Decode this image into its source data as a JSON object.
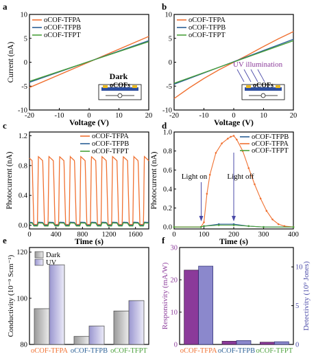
{
  "colors": {
    "TFPA": "#f07030",
    "TFPB": "#2a5f95",
    "TFPT": "#4aa03a",
    "frame": "#000000",
    "responsivity": "#8b3a9a",
    "detectivity": "#4a4aa8",
    "device_layer": "#2d4fa0",
    "electrode": "#e8b820"
  },
  "chart_data": [
    {
      "panel": "a",
      "type": "line",
      "xlabel": "Voltage (V)",
      "ylabel": "Current (nA)",
      "xlim": [
        -20,
        20
      ],
      "ylim": [
        -10,
        10
      ],
      "xticks": [
        "-20",
        "-10",
        "0",
        "10",
        "20"
      ],
      "yticks": [
        "-10",
        "-5",
        "0",
        "5",
        "10"
      ],
      "legend": "top-left",
      "annotation": "Dark",
      "device_label": "oCOFs",
      "series": [
        {
          "name": "oCOF-TFPA",
          "color_key": "TFPA",
          "x": [
            -20,
            20
          ],
          "y": [
            -5.3,
            5.4
          ]
        },
        {
          "name": "oCOF-TFPB",
          "color_key": "TFPB",
          "x": [
            -20,
            20
          ],
          "y": [
            -4.2,
            4.5
          ]
        },
        {
          "name": "oCOF-TFPT",
          "color_key": "TFPT",
          "x": [
            -20,
            20
          ],
          "y": [
            -4.0,
            4.3
          ]
        }
      ]
    },
    {
      "panel": "b",
      "type": "line",
      "xlabel": "Voltage (V)",
      "ylabel": "",
      "xlim": [
        -20,
        20
      ],
      "ylim": [
        -10,
        10
      ],
      "xticks": [
        "-20",
        "-10",
        "0",
        "10",
        "20"
      ],
      "yticks": [
        "-10",
        "-5",
        "0",
        "5",
        "10"
      ],
      "legend": "top-left",
      "annotation": "UV illumination",
      "device_label": "oCOFs",
      "series": [
        {
          "name": "oCOF-TFPA",
          "color_key": "TFPA",
          "x": [
            -20,
            -15,
            -10,
            -5,
            0,
            5,
            10,
            15,
            20
          ],
          "y": [
            -7.6,
            -5.4,
            -3.4,
            -1.6,
            0,
            1.6,
            3.3,
            4.9,
            6.4
          ]
        },
        {
          "name": "oCOF-TFPB",
          "color_key": "TFPB",
          "x": [
            -20,
            20
          ],
          "y": [
            -4.6,
            4.8
          ]
        },
        {
          "name": "oCOF-TFPT",
          "color_key": "TFPT",
          "x": [
            -20,
            20
          ],
          "y": [
            -4.4,
            4.5
          ]
        }
      ]
    },
    {
      "panel": "c",
      "type": "line",
      "xlabel": "Time (s)",
      "ylabel": "Photocurrent (nA)",
      "xlim": [
        0,
        1800
      ],
      "ylim": [
        -0.05,
        1.25
      ],
      "xticks": [
        "0",
        "400",
        "800",
        "1200",
        "1600"
      ],
      "yticks": [
        "0.0",
        "0.4",
        "0.8",
        "1.2"
      ],
      "legend": "top-right",
      "cycles": 11,
      "period_s": 160,
      "series": [
        {
          "name": "oCOF-TFPA",
          "color_key": "TFPA",
          "peak": 0.92,
          "base": 0.01
        },
        {
          "name": "oCOF-TFPB",
          "color_key": "TFPB",
          "peak": 0.04,
          "base": 0.0
        },
        {
          "name": "oCOF-TFPT",
          "color_key": "TFPT",
          "peak": 0.03,
          "base": -0.01
        }
      ]
    },
    {
      "panel": "d",
      "type": "line",
      "xlabel": "Time (s)",
      "ylabel": "Photocurrent (nA)",
      "xlim": [
        0,
        400
      ],
      "ylim": [
        -0.02,
        1.0
      ],
      "xticks": [
        "0",
        "100",
        "200",
        "300",
        "400"
      ],
      "yticks": [
        "0.0",
        "0.2",
        "0.4",
        "0.6",
        "0.8",
        "1.0"
      ],
      "legend": "top-right",
      "annotations": [
        "Light on",
        "Light off"
      ],
      "light_on_s": 100,
      "light_off_s": 200,
      "series": [
        {
          "name": "oCOF-TFPB",
          "color_key": "TFPB",
          "x": [
            0,
            90,
            100,
            150,
            200,
            250,
            300,
            400
          ],
          "y": [
            0.0,
            0.0,
            0.01,
            0.03,
            0.03,
            0.01,
            0.0,
            0.0
          ]
        },
        {
          "name": "oCOF-TFPA",
          "color_key": "TFPA",
          "x": [
            0,
            90,
            100,
            110,
            120,
            140,
            160,
            180,
            190,
            200,
            210,
            230,
            250,
            270,
            290,
            310,
            330,
            350,
            370,
            400
          ],
          "y": [
            0.0,
            0.0,
            0.05,
            0.35,
            0.55,
            0.78,
            0.88,
            0.93,
            0.95,
            0.96,
            0.92,
            0.8,
            0.62,
            0.45,
            0.3,
            0.17,
            0.08,
            0.03,
            0.01,
            0.0
          ]
        },
        {
          "name": "oCOF-TFPT",
          "color_key": "TFPT",
          "x": [
            0,
            90,
            100,
            150,
            200,
            250,
            300,
            400
          ],
          "y": [
            0.0,
            0.0,
            0.01,
            0.02,
            0.02,
            0.01,
            0.0,
            0.0
          ]
        }
      ]
    },
    {
      "panel": "e",
      "type": "bar",
      "ylabel": "Conductivity (10⁻⁹ Scm⁻¹)",
      "ylim": [
        80,
        122
      ],
      "yticks": [
        "80",
        "100",
        "120"
      ],
      "legend": "top-left",
      "categories": [
        "oCOF-TFPA",
        "oCOF-TFPB",
        "oCOF-TFPT"
      ],
      "category_colors": [
        "TFPA",
        "TFPB",
        "TFPT"
      ],
      "series": [
        {
          "name": "Dark",
          "values": [
            95.5,
            83.5,
            94.5
          ]
        },
        {
          "name": "UV",
          "values": [
            114.5,
            88.0,
            99.0
          ]
        }
      ]
    },
    {
      "panel": "f",
      "type": "bar",
      "ylabel": "Responsivity (mA/W)",
      "ylabel_right": "Detectivity (10⁹ Jones)",
      "ylim": [
        0,
        30
      ],
      "ylim_right": [
        0,
        12.5
      ],
      "yticks": [
        "0",
        "10",
        "20",
        "30"
      ],
      "yticks_right": [
        "0",
        "5",
        "10"
      ],
      "categories": [
        "oCOF-TFPA",
        "oCOF-TFPB",
        "oCOF-TFPT"
      ],
      "category_colors": [
        "TFPA",
        "TFPB",
        "TFPT"
      ],
      "series": [
        {
          "name": "Responsivity",
          "axis": "left",
          "values": [
            23.0,
            1.0,
            0.7
          ]
        },
        {
          "name": "Detectivity",
          "axis": "right",
          "values": [
            10.1,
            0.5,
            0.35
          ]
        }
      ]
    }
  ]
}
